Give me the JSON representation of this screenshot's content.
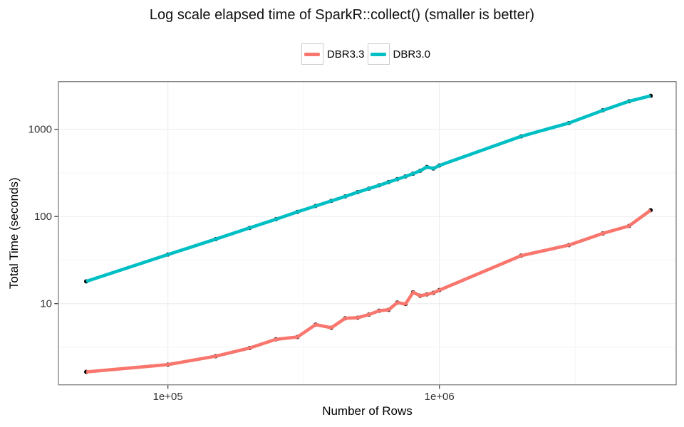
{
  "title": "Log scale elapsed time of SparkR::collect() (smaller is better)",
  "legend": {
    "entries": [
      {
        "label": "DBR3.3",
        "color": "#F8766D"
      },
      {
        "label": "DBR3.0",
        "color": "#00BFC4"
      }
    ]
  },
  "chart_data": {
    "type": "line",
    "title": "Log scale elapsed time of SparkR::collect() (smaller is better)",
    "xlabel": "Number of Rows",
    "ylabel": "Total Time (seconds)",
    "x_scale": "log10",
    "y_scale": "log10",
    "legend_position": "top",
    "grid": {
      "major_color": "#ededed",
      "minor_color": "#f5f5f5",
      "panel_border": "#898989",
      "background": "#ffffff"
    },
    "x_ticks": [
      {
        "value": 100000,
        "label": "1e+05"
      },
      {
        "value": 1000000,
        "label": "1e+06"
      }
    ],
    "y_ticks": [
      {
        "value": 10,
        "label": "10"
      },
      {
        "value": 100,
        "label": "100"
      },
      {
        "value": 1000,
        "label": "1000"
      }
    ],
    "x_minor_breaks": [
      316228,
      3162278
    ],
    "y_minor_breaks": [
      3.162,
      31.62,
      316.2
    ],
    "xlim_log10": [
      4.5966,
      6.8722
    ],
    "ylim_log10": [
      0.0694,
      3.5469
    ],
    "point_color": "#000000",
    "x": [
      50000,
      100000,
      150000,
      200000,
      250000,
      300000,
      350000,
      400000,
      450000,
      500000,
      550000,
      600000,
      650000,
      700000,
      750000,
      800000,
      850000,
      900000,
      950000,
      1000000,
      2000000,
      3000000,
      4000000,
      5000000,
      6000000
    ],
    "series": [
      {
        "name": "DBR3.3",
        "color": "#F8766D",
        "values": [
          1.65,
          2.0,
          2.5,
          3.1,
          3.9,
          4.15,
          5.75,
          5.3,
          6.8,
          6.9,
          7.5,
          8.3,
          8.5,
          10.3,
          9.9,
          13.5,
          12.3,
          12.8,
          13.3,
          14.3,
          35.5,
          47,
          64,
          78,
          118
        ]
      },
      {
        "name": "DBR3.0",
        "color": "#00BFC4",
        "values": [
          18,
          36.6,
          55,
          74,
          93,
          113,
          132,
          151,
          170,
          190,
          209,
          228,
          248,
          268,
          288,
          310,
          335,
          370,
          355,
          385,
          830,
          1180,
          1650,
          2100,
          2420
        ]
      }
    ]
  }
}
